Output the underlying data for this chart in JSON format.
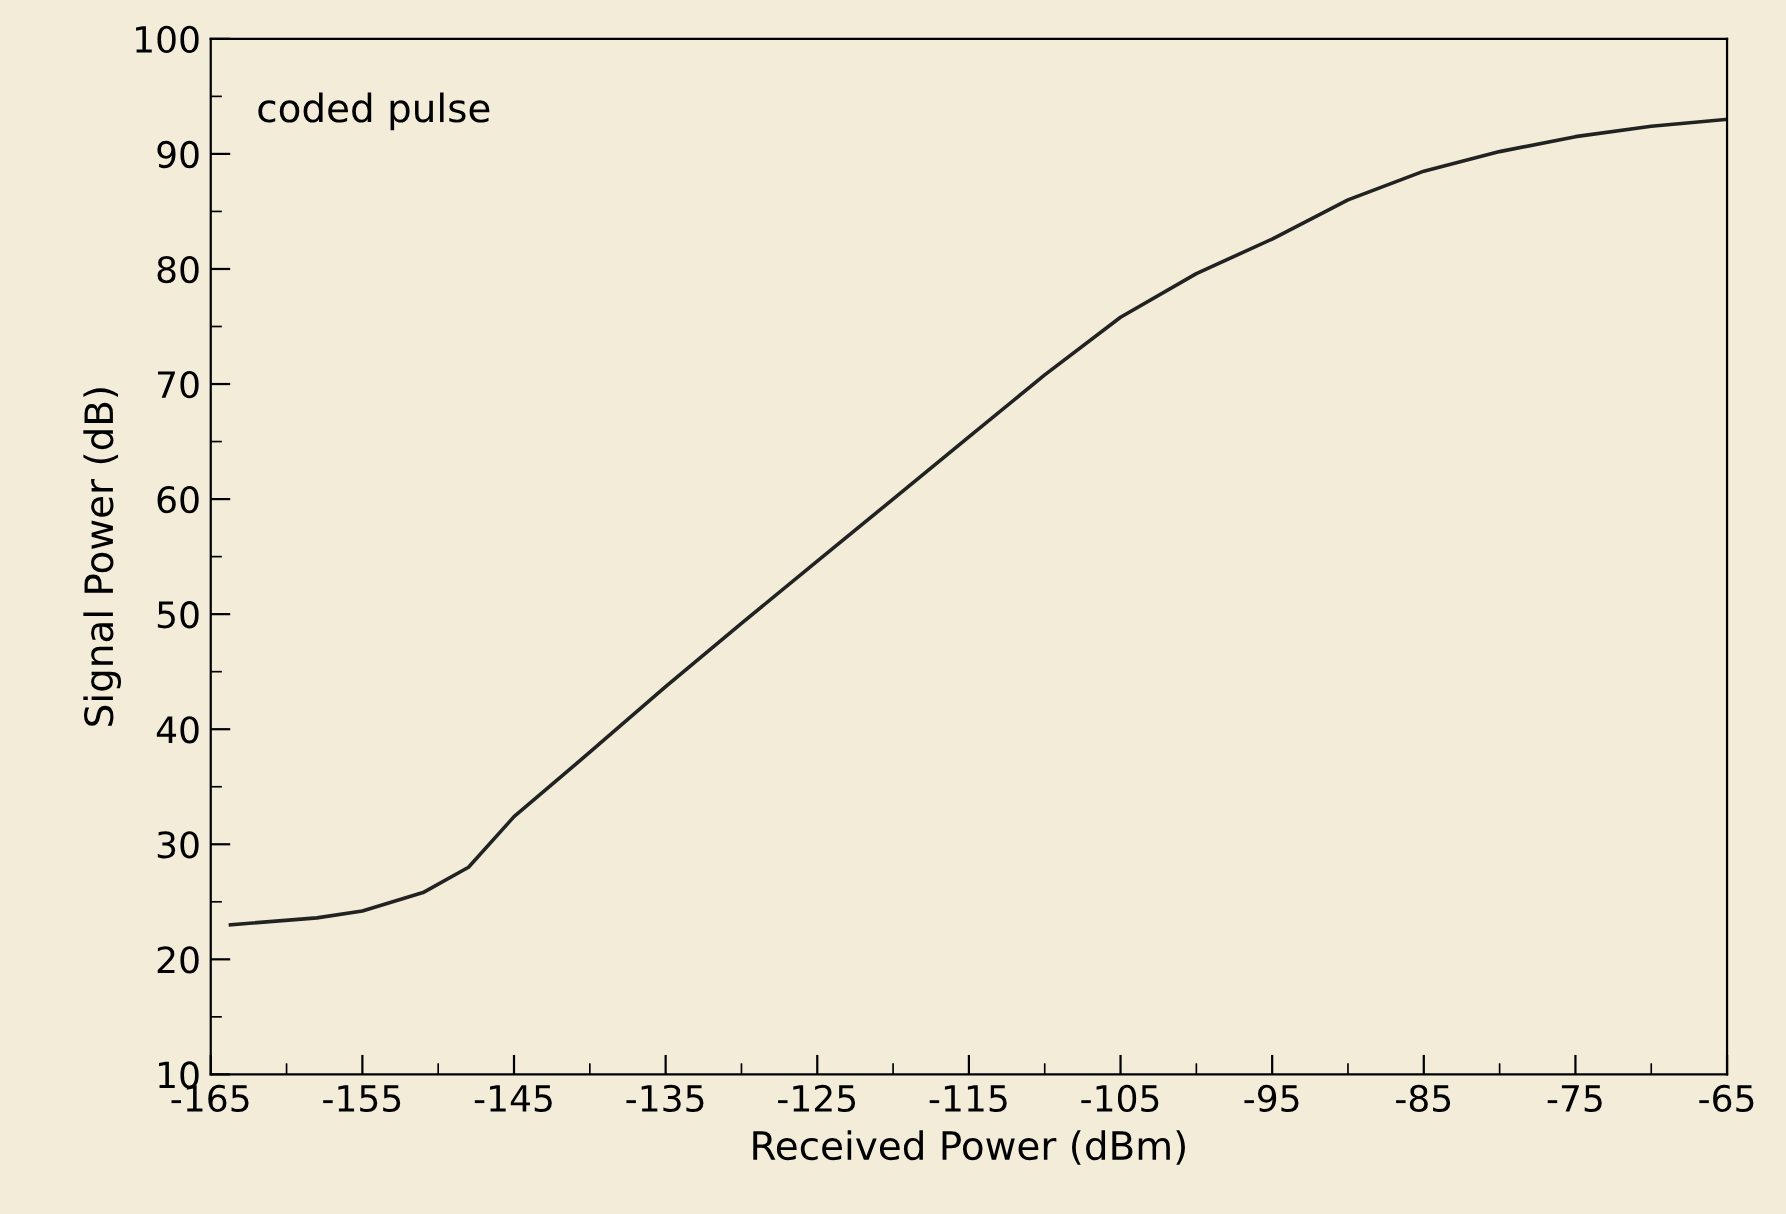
{
  "chart_data": {
    "type": "line",
    "xlabel": "Received Power (dBm)",
    "ylabel": "Signal Power (dB)",
    "annotations": [
      "coded pulse"
    ],
    "x": [
      -163.7,
      -158,
      -155,
      -151,
      -148,
      -145,
      -140,
      -135,
      -130,
      -125,
      -120,
      -115,
      -110,
      -105,
      -100,
      -95,
      -90,
      -85,
      -80,
      -75,
      -70,
      -65
    ],
    "series": [
      {
        "color": "#222222",
        "values": [
          23.0,
          23.6,
          24.2,
          25.8,
          28.0,
          32.4,
          38.0,
          43.7,
          49.2,
          54.6,
          60.0,
          65.4,
          70.8,
          75.8,
          79.6,
          82.6,
          86.0,
          88.5,
          90.2,
          91.5,
          92.4,
          93.0
        ]
      }
    ],
    "xlim": [
      -165,
      -65
    ],
    "ylim": [
      10,
      100
    ],
    "xticks": [
      -165,
      -155,
      -145,
      -135,
      -125,
      -115,
      -105,
      -95,
      -85,
      -75,
      -65
    ],
    "yticks": [
      10,
      20,
      30,
      40,
      50,
      60,
      70,
      80,
      90,
      100
    ],
    "grid": false,
    "legend": false,
    "marker": "none",
    "line_style": "solid"
  }
}
